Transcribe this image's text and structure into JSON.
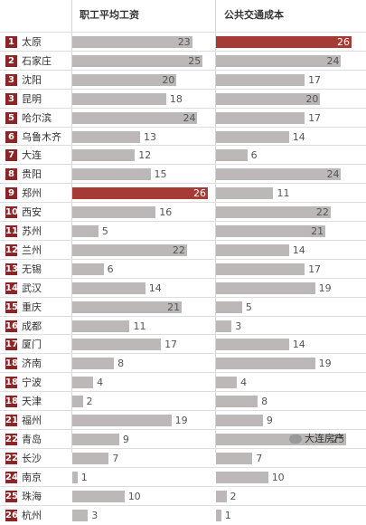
{
  "chart_data": {
    "type": "bar",
    "headers": {
      "salary": "职工平均工资",
      "transport": "公共交通成本"
    },
    "ranks": [
      "1",
      "2",
      "3",
      "3",
      "5",
      "6",
      "7",
      "8",
      "9",
      "10",
      "11",
      "12",
      "13",
      "14",
      "15",
      "16",
      "17",
      "18",
      "18",
      "18",
      "21",
      "22",
      "22",
      "24",
      "25",
      "26"
    ],
    "categories": [
      "太原",
      "石家庄",
      "沈阳",
      "昆明",
      "哈尔滨",
      "乌鲁木齐",
      "大连",
      "贵阳",
      "郑州",
      "西安",
      "苏州",
      "兰州",
      "无锡",
      "武汉",
      "重庆",
      "成都",
      "厦门",
      "济南",
      "宁波",
      "天津",
      "福州",
      "青岛",
      "长沙",
      "南京",
      "珠海",
      "杭州"
    ],
    "series": [
      {
        "name": "职工平均工资",
        "values": [
          23,
          25,
          20,
          18,
          24,
          13,
          12,
          15,
          26,
          16,
          5,
          22,
          6,
          14,
          21,
          11,
          17,
          8,
          4,
          2,
          19,
          9,
          7,
          1,
          10,
          3
        ],
        "highlight_index": 8
      },
      {
        "name": "公共交通成本",
        "values": [
          26,
          24,
          17,
          20,
          17,
          14,
          6,
          24,
          11,
          22,
          21,
          14,
          17,
          19,
          5,
          3,
          14,
          19,
          4,
          8,
          9,
          25,
          7,
          10,
          2,
          1
        ],
        "highlight_index": 0
      }
    ],
    "xlim": [
      0,
      26
    ],
    "colors": {
      "bar": "#bdb8b8",
      "highlight": "#a63a35",
      "rank_bg": "#8b2626"
    },
    "watermark": "大连房产"
  }
}
